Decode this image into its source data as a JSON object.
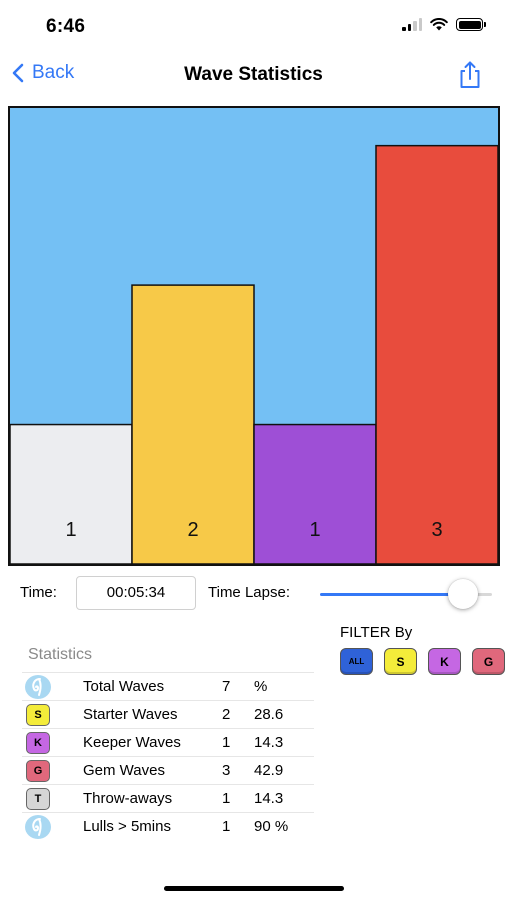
{
  "status_bar": {
    "time": "6:46"
  },
  "nav": {
    "back_label": "Back",
    "title": "Wave Statistics"
  },
  "chart_data": {
    "type": "bar",
    "categories": [
      "",
      "",
      "",
      ""
    ],
    "values": [
      1,
      2,
      1,
      3
    ],
    "data_labels": [
      "1",
      "2",
      "1",
      "3"
    ],
    "colors": [
      "#ecedf0",
      "#f7c948",
      "#9e4fd6",
      "#e84c3d"
    ],
    "background": "#74c0f4",
    "ylim": [
      0,
      3.27
    ],
    "grid": false
  },
  "controls": {
    "time_label": "Time:",
    "time_value": "00:05:34",
    "lapse_label": "Time Lapse:",
    "lapse_value": 0.9
  },
  "filter": {
    "label": "FILTER By",
    "buttons": [
      {
        "label": "ALL",
        "color": "#2f62d8"
      },
      {
        "label": "S",
        "color": "#f4ec3a"
      },
      {
        "label": "K",
        "color": "#c567e3"
      },
      {
        "label": "G",
        "color": "#e0687c"
      }
    ]
  },
  "statistics": {
    "title": "Statistics",
    "rows": [
      {
        "icon": "wave-icon",
        "icon_text": "",
        "icon_color": "#a9d8f2",
        "name": "Total Waves",
        "count": "7",
        "pct": "%"
      },
      {
        "icon": "starter-badge-icon",
        "icon_text": "S",
        "icon_color": "#f4ec3a",
        "name": "Starter Waves",
        "count": "2",
        "pct": "28.6"
      },
      {
        "icon": "keeper-badge-icon",
        "icon_text": "K",
        "icon_color": "#c567e3",
        "name": "Keeper Waves",
        "count": "1",
        "pct": "14.3"
      },
      {
        "icon": "gem-badge-icon",
        "icon_text": "G",
        "icon_color": "#e0687c",
        "name": "Gem Waves",
        "count": "3",
        "pct": "42.9"
      },
      {
        "icon": "throwaway-badge-icon",
        "icon_text": "T",
        "icon_color": "#d6d6d6",
        "name": "Throw-aways",
        "count": "1",
        "pct": "14.3"
      },
      {
        "icon": "wave-icon",
        "icon_text": "",
        "icon_color": "#a9d8f2",
        "name": "Lulls > 5mins",
        "count": "1",
        "pct": "90 %"
      }
    ]
  },
  "accent_color": "#3478f6"
}
